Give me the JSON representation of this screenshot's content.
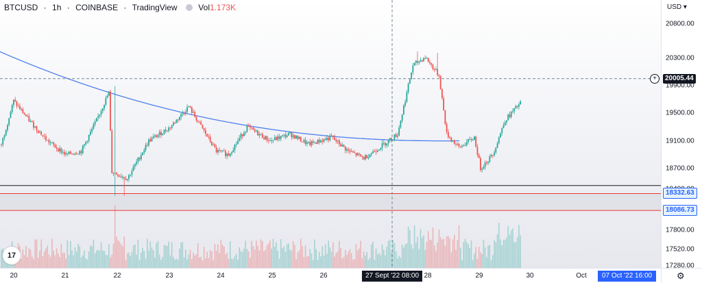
{
  "header": {
    "symbol": "BTCUSD",
    "interval": "1h",
    "exchange": "COINBASE",
    "source": "TradingView",
    "vol_label": "Vol",
    "vol_value": "1.173K"
  },
  "colors": {
    "up": "#26a69a",
    "down": "#ef5350",
    "ma": "#4c7ff0",
    "red_line": "#e53935",
    "support_line": "#131722",
    "crosshair": "#758696",
    "label_dark": "#131722",
    "label_blue": "#2962ff"
  },
  "price_axis": {
    "currency": "USD",
    "ticks": [
      "20800.00",
      "20300.00",
      "19900.00",
      "19500.00",
      "19100.00",
      "18700.00",
      "18400.00",
      "17800.00",
      "17520.00",
      "17280.00"
    ],
    "crosshair_price": "20005.44",
    "levels": [
      "18332.63",
      "18086.73"
    ]
  },
  "time_axis": {
    "ticks": [
      "20",
      "21",
      "22",
      "23",
      "24",
      "25",
      "26",
      "28",
      "29",
      "30",
      "Oct"
    ],
    "crosshair_time": "27 Sept '22  08:00",
    "end_date": "07 Oct '22  16:00"
  },
  "logo_text": "17",
  "chart_data": {
    "type": "candlestick",
    "x_start": "20 Sept '22 00:00",
    "interval": "1h",
    "ylim": [
      17250,
      21150
    ],
    "moving_average_start": 20410,
    "moving_average_end": 19100,
    "crosshair_price": 20005.44,
    "horizontal_lines": [
      18450,
      18332.63,
      18086.73
    ],
    "waypoints": [
      [
        0,
        19050
      ],
      [
        8,
        19680
      ],
      [
        18,
        19400
      ],
      [
        30,
        19100
      ],
      [
        42,
        18900
      ],
      [
        52,
        18950
      ],
      [
        62,
        19400
      ],
      [
        70,
        19800
      ],
      [
        72,
        18650
      ],
      [
        82,
        18550
      ],
      [
        96,
        19100
      ],
      [
        110,
        19300
      ],
      [
        122,
        19600
      ],
      [
        140,
        18950
      ],
      [
        148,
        18900
      ],
      [
        160,
        19300
      ],
      [
        175,
        19100
      ],
      [
        188,
        19200
      ],
      [
        200,
        19050
      ],
      [
        215,
        19150
      ],
      [
        226,
        18950
      ],
      [
        236,
        18850
      ],
      [
        246,
        19000
      ],
      [
        258,
        19200
      ],
      [
        263,
        19700
      ],
      [
        268,
        20200
      ],
      [
        276,
        20320
      ],
      [
        285,
        20050
      ],
      [
        290,
        19200
      ],
      [
        298,
        19000
      ],
      [
        308,
        19150
      ],
      [
        312,
        18700
      ],
      [
        320,
        18900
      ],
      [
        328,
        19400
      ],
      [
        338,
        19650
      ]
    ],
    "spikes": [
      [
        74,
        19900,
        18300
      ],
      [
        80,
        18500,
        18300
      ],
      [
        271,
        20400,
        20200
      ],
      [
        284,
        20380,
        20200
      ]
    ],
    "volume_max": 1173
  }
}
